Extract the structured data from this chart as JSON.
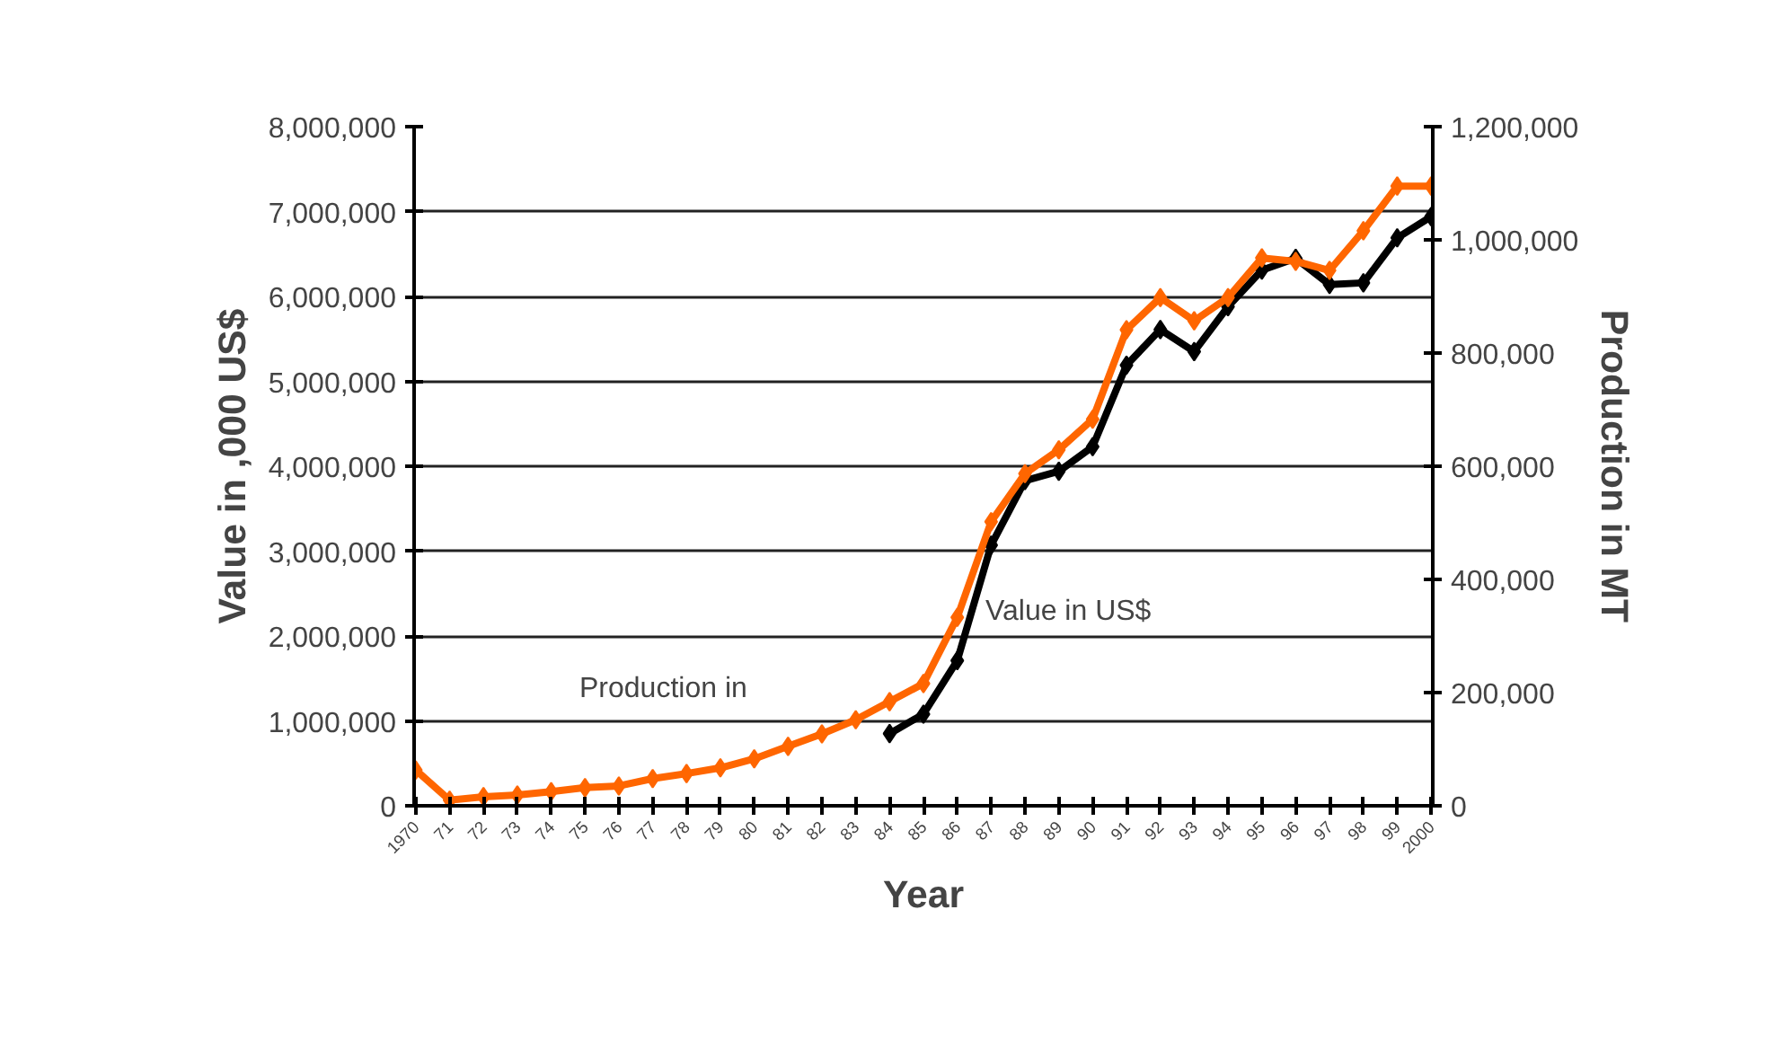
{
  "chart_data": {
    "type": "line",
    "xlabel": "Year",
    "ylabel": "Value in ,000 US$",
    "y2label": "Production in MT",
    "categories": [
      "1970",
      "71",
      "72",
      "73",
      "74",
      "75",
      "76",
      "77",
      "78",
      "79",
      "80",
      "81",
      "82",
      "83",
      "84",
      "85",
      "86",
      "87",
      "88",
      "89",
      "90",
      "91",
      "92",
      "93",
      "94",
      "95",
      "96",
      "97",
      "98",
      "99",
      "2000"
    ],
    "series": [
      {
        "color": "#000000",
        "values": [
          null,
          null,
          null,
          null,
          null,
          null,
          null,
          null,
          null,
          null,
          null,
          null,
          null,
          null,
          850000,
          1080000,
          1710000,
          3070000,
          3830000,
          3940000,
          4230000,
          5190000,
          5610000,
          5350000,
          5880000,
          6310000,
          6450000,
          6140000,
          6160000,
          6690000,
          6940000
        ]
      },
      {
        "color": "#ff6600",
        "axis": "y2",
        "values": [
          63000,
          10000,
          16000,
          19000,
          25000,
          32000,
          35000,
          48000,
          57000,
          67000,
          83000,
          105000,
          127000,
          152000,
          184000,
          216000,
          333000,
          502000,
          587000,
          629000,
          683000,
          841000,
          898000,
          857000,
          898000,
          968000,
          962000,
          946000,
          1016000,
          1095000,
          1095000
        ]
      }
    ],
    "ylim": [
      0,
      8000000
    ],
    "yticks": [
      {
        "value": 0,
        "label": "0"
      },
      {
        "value": 1000000,
        "label": "1,000,000"
      },
      {
        "value": 2000000,
        "label": "2,000,000"
      },
      {
        "value": 3000000,
        "label": "3,000,000"
      },
      {
        "value": 4000000,
        "label": "4,000,000"
      },
      {
        "value": 5000000,
        "label": "5,000,000"
      },
      {
        "value": 6000000,
        "label": "6,000,000"
      },
      {
        "value": 7000000,
        "label": "7,000,000"
      },
      {
        "value": 8000000,
        "label": "8,000,000"
      }
    ],
    "y2lim": [
      0,
      1200000
    ],
    "y2ticks": [
      {
        "value": 0,
        "label": "0"
      },
      {
        "value": 200000,
        "label": "200,000"
      },
      {
        "value": 400000,
        "label": "400,000"
      },
      {
        "value": 600000,
        "label": "600,000"
      },
      {
        "value": 800000,
        "label": "800,000"
      },
      {
        "value": 1000000,
        "label": "1,000,000"
      },
      {
        "value": 1200000,
        "label": "1,200,000"
      }
    ],
    "annotations": [
      "Production in",
      "Value in US$"
    ],
    "grid": "y",
    "marker": "diamond",
    "line_style": "solid"
  }
}
